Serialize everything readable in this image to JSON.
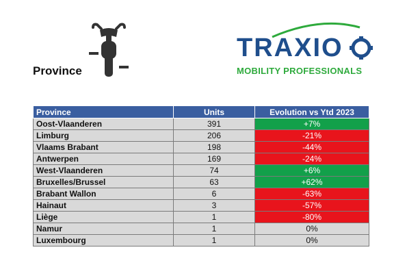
{
  "heading": "Province",
  "logo": {
    "name": "TRAXIO",
    "tagline": "MOBILITY PROFESSIONALS",
    "colors": {
      "word": "#1f4e8c",
      "tagline": "#2eaa3c"
    }
  },
  "icon": "moped-front-icon",
  "table": {
    "headers": {
      "province": "Province",
      "units": "Units",
      "evolution": "Evolution vs Ytd 2023"
    },
    "rows": [
      {
        "province": "Oost-Vlaanderen",
        "units": "391",
        "evolution": "+7%",
        "trend": "pos"
      },
      {
        "province": "Limburg",
        "units": "206",
        "evolution": "-21%",
        "trend": "neg"
      },
      {
        "province": "Vlaams Brabant",
        "units": "198",
        "evolution": "-44%",
        "trend": "neg"
      },
      {
        "province": "Antwerpen",
        "units": "169",
        "evolution": "-24%",
        "trend": "neg"
      },
      {
        "province": "West-Vlaanderen",
        "units": "74",
        "evolution": "+6%",
        "trend": "pos"
      },
      {
        "province": "Bruxelles/Brussel",
        "units": "63",
        "evolution": "+62%",
        "trend": "pos"
      },
      {
        "province": "Brabant Wallon",
        "units": "6",
        "evolution": "-63%",
        "trend": "neg"
      },
      {
        "province": "Hainaut",
        "units": "3",
        "evolution": "-57%",
        "trend": "neg"
      },
      {
        "province": "Liège",
        "units": "1",
        "evolution": "-80%",
        "trend": "neg"
      },
      {
        "province": "Namur",
        "units": "1",
        "evolution": "0%",
        "trend": "zero"
      },
      {
        "province": "Luxembourg",
        "units": "1",
        "evolution": "0%",
        "trend": "zero"
      }
    ]
  },
  "colors": {
    "header": "#3a5ea0",
    "positive": "#12a04a",
    "negative": "#e8141c",
    "neutral": "#d9d9d9"
  }
}
